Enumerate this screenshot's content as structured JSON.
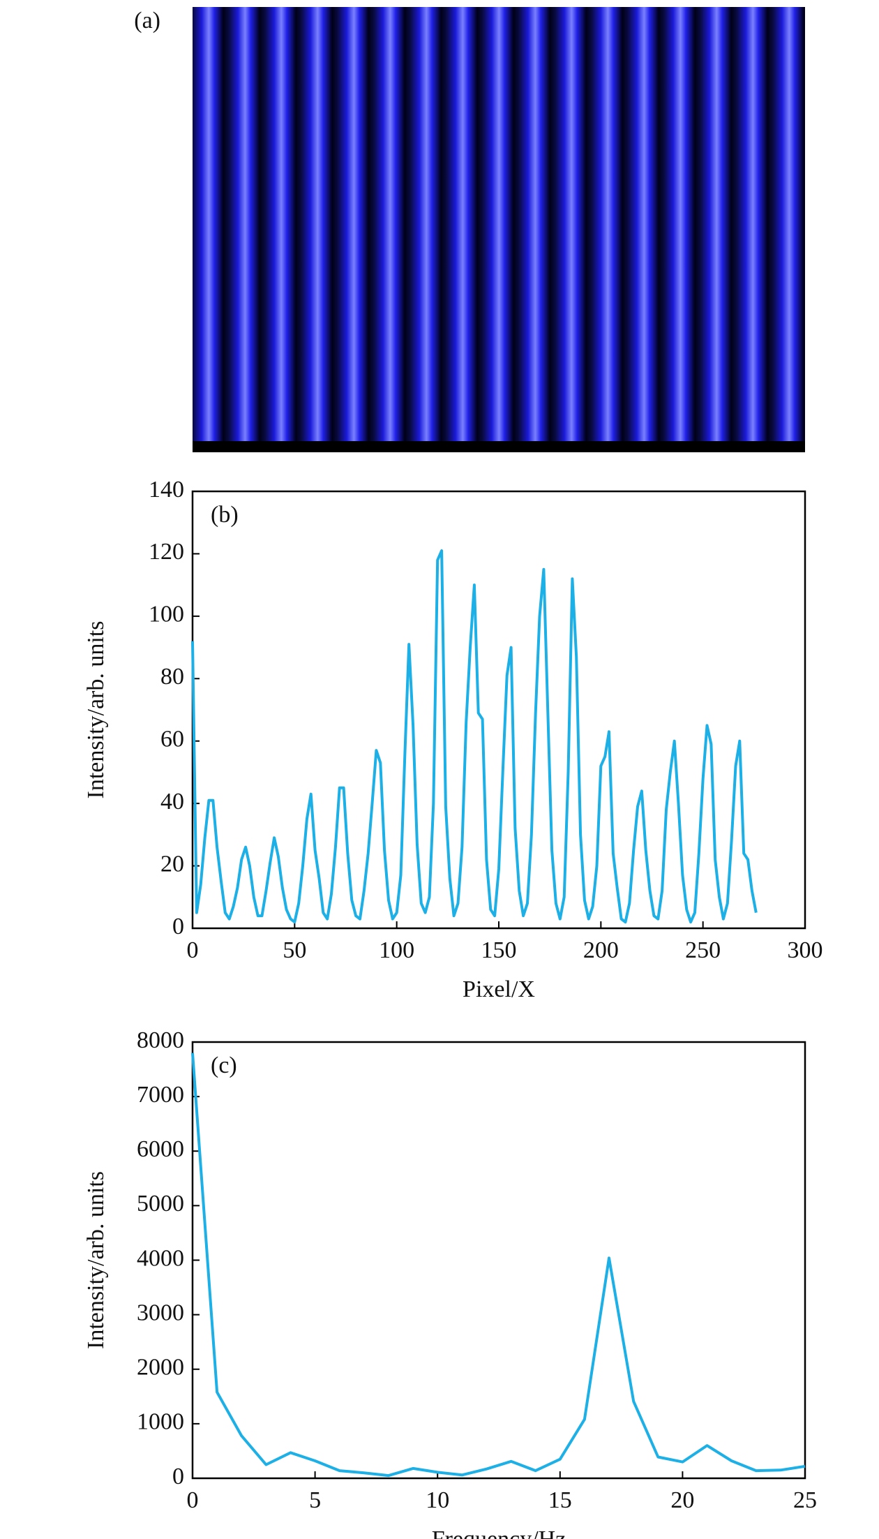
{
  "chart_data": [
    {
      "type": "image",
      "label": "(a)"
    },
    {
      "type": "line",
      "label": "(b)",
      "xlabel": "Pixel/X",
      "ylabel": "Intensity/arb. units",
      "color": "#1cb0e6",
      "xlim": [
        0,
        300
      ],
      "ylim": [
        0,
        140
      ],
      "xticks": [
        0,
        50,
        100,
        150,
        200,
        250,
        300
      ],
      "yticks": [
        0,
        20,
        40,
        60,
        80,
        100,
        120,
        140
      ],
      "x": [
        0,
        2,
        4,
        6,
        8,
        10,
        12,
        14,
        16,
        18,
        20,
        22,
        24,
        26,
        28,
        30,
        32,
        34,
        36,
        38,
        40,
        42,
        44,
        46,
        48,
        50,
        52,
        54,
        56,
        58,
        60,
        62,
        64,
        66,
        68,
        70,
        72,
        74,
        76,
        78,
        80,
        82,
        84,
        86,
        88,
        90,
        92,
        94,
        96,
        98,
        100,
        102,
        104,
        106,
        108,
        110,
        112,
        114,
        116,
        118,
        120,
        122,
        124,
        126,
        128,
        130,
        132,
        134,
        136,
        138,
        140,
        142,
        144,
        146,
        148,
        150,
        152,
        154,
        156,
        158,
        160,
        162,
        164,
        166,
        168,
        170,
        172,
        174,
        176,
        178,
        180,
        182,
        184,
        186,
        188,
        190,
        192,
        194,
        196,
        198,
        200,
        202,
        204,
        206,
        208,
        210,
        212,
        214,
        216,
        218,
        220,
        222,
        224,
        226,
        228,
        230,
        232,
        234,
        236,
        238,
        240,
        242,
        244,
        246,
        248,
        250,
        252,
        254,
        256,
        258,
        260,
        262,
        264,
        266,
        268,
        270,
        272,
        274,
        276
      ],
      "values": [
        92,
        5,
        14,
        29,
        41,
        41,
        26,
        15,
        5,
        3,
        7,
        13,
        22,
        26,
        20,
        10,
        4,
        4,
        12,
        21,
        29,
        23,
        13,
        6,
        3,
        2,
        8,
        20,
        35,
        43,
        25,
        16,
        5,
        3,
        11,
        26,
        45,
        45,
        24,
        9,
        4,
        3,
        12,
        24,
        40,
        57,
        53,
        25,
        9,
        3,
        5,
        17,
        56,
        91,
        65,
        27,
        8,
        5,
        10,
        40,
        118,
        121,
        39,
        16,
        4,
        8,
        26,
        66,
        90,
        110,
        69,
        67,
        22,
        6,
        4,
        19,
        51,
        81,
        90,
        32,
        12,
        4,
        8,
        30,
        69,
        100,
        115,
        70,
        25,
        8,
        3,
        10,
        50,
        112,
        87,
        30,
        9,
        3,
        7,
        20,
        52,
        55,
        63,
        24,
        13,
        3,
        2,
        8,
        25,
        39,
        44,
        25,
        12,
        4,
        3,
        12,
        38,
        50,
        60,
        40,
        17,
        6,
        2,
        5,
        24,
        48,
        65,
        59,
        22,
        10,
        3,
        8,
        28,
        52,
        60,
        24,
        22,
        12,
        5
      ]
    },
    {
      "type": "line",
      "label": "(c)",
      "xlabel": "Frequency/Hz",
      "ylabel": "Intensity/arb. units",
      "color": "#1cb0e6",
      "xlim": [
        0,
        25
      ],
      "ylim": [
        0,
        8000
      ],
      "xticks": [
        0,
        5,
        10,
        15,
        20,
        25
      ],
      "yticks": [
        0,
        1000,
        2000,
        3000,
        4000,
        5000,
        6000,
        7000,
        8000
      ],
      "x": [
        0,
        1,
        2,
        3,
        4,
        5,
        6,
        7,
        8,
        9,
        10,
        11,
        12,
        13,
        14,
        15,
        16,
        17,
        18,
        19,
        20,
        21,
        22,
        23,
        24,
        25
      ],
      "values": [
        7800,
        1580,
        780,
        250,
        470,
        320,
        140,
        100,
        50,
        180,
        110,
        60,
        170,
        310,
        140,
        350,
        1080,
        4040,
        1410,
        390,
        300,
        600,
        320,
        140,
        150,
        220
      ]
    }
  ]
}
